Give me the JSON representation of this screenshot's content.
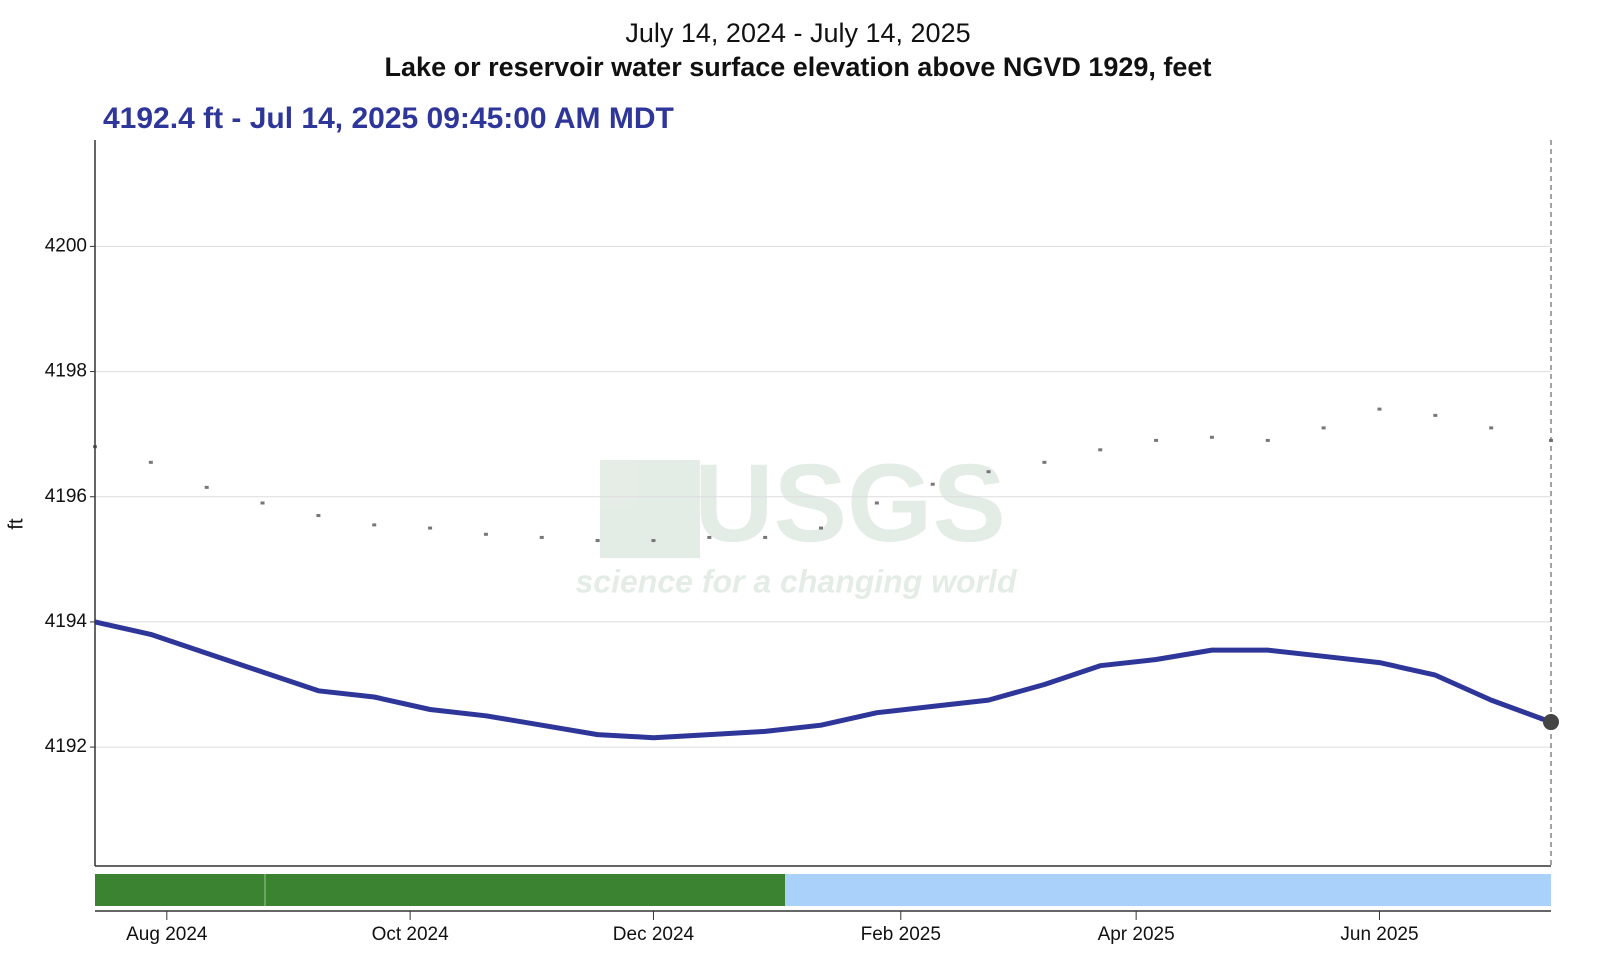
{
  "chart_data": {
    "type": "line",
    "subtitle": "July 14, 2024 - July 14, 2025",
    "title": "Lake or reservoir water surface elevation above NGVD 1929, feet",
    "current_reading": "4192.4 ft - Jul 14, 2025 09:45:00 AM MDT",
    "y_label": "ft",
    "watermark": {
      "logo": "USGS",
      "tagline": "science for a changing world"
    },
    "xlim": [
      "2024-07-14",
      "2025-07-14"
    ],
    "xticks": [
      {
        "value": "2024-08-01",
        "label": "Aug 2024"
      },
      {
        "value": "2024-10-01",
        "label": "Oct 2024"
      },
      {
        "value": "2024-12-01",
        "label": "Dec 2024"
      },
      {
        "value": "2025-02-01",
        "label": "Feb 2025"
      },
      {
        "value": "2025-04-01",
        "label": "Apr 2025"
      },
      {
        "value": "2025-06-01",
        "label": "Jun 2025"
      }
    ],
    "ylim": [
      4190.1,
      4201.7
    ],
    "yticks": [
      4192,
      4194,
      4196,
      4198,
      4200
    ],
    "grid": true,
    "x": [
      "2024-07-14",
      "2024-07-28",
      "2024-08-11",
      "2024-08-25",
      "2024-09-08",
      "2024-09-22",
      "2024-10-06",
      "2024-10-20",
      "2024-11-03",
      "2024-11-17",
      "2024-12-01",
      "2024-12-15",
      "2024-12-29",
      "2025-01-12",
      "2025-01-26",
      "2025-02-09",
      "2025-02-23",
      "2025-03-09",
      "2025-03-23",
      "2025-04-06",
      "2025-04-20",
      "2025-05-04",
      "2025-05-18",
      "2025-06-01",
      "2025-06-15",
      "2025-06-29",
      "2025-07-14"
    ],
    "series": [
      {
        "color": "#2f3699",
        "mode": "line",
        "values": [
          4194.0,
          4193.8,
          4193.5,
          4193.2,
          4192.9,
          4192.8,
          4192.6,
          4192.5,
          4192.35,
          4192.2,
          4192.15,
          4192.2,
          4192.25,
          4192.35,
          4192.55,
          4192.65,
          4192.75,
          4193.0,
          4193.3,
          4193.4,
          4193.55,
          4193.55,
          4193.45,
          4193.35,
          4193.15,
          4192.75,
          4192.4
        ]
      },
      {
        "color": "#777777",
        "mode": "markers",
        "values": [
          4196.8,
          4196.55,
          4196.15,
          4195.9,
          4195.7,
          4195.55,
          4195.5,
          4195.4,
          4195.35,
          4195.3,
          4195.3,
          4195.35,
          4195.35,
          4195.5,
          4195.9,
          4196.2,
          4196.4,
          4196.55,
          4196.75,
          4196.9,
          4196.95,
          4196.9,
          4197.1,
          4197.4,
          4197.3,
          4197.1,
          4196.9
        ]
      }
    ]
  }
}
